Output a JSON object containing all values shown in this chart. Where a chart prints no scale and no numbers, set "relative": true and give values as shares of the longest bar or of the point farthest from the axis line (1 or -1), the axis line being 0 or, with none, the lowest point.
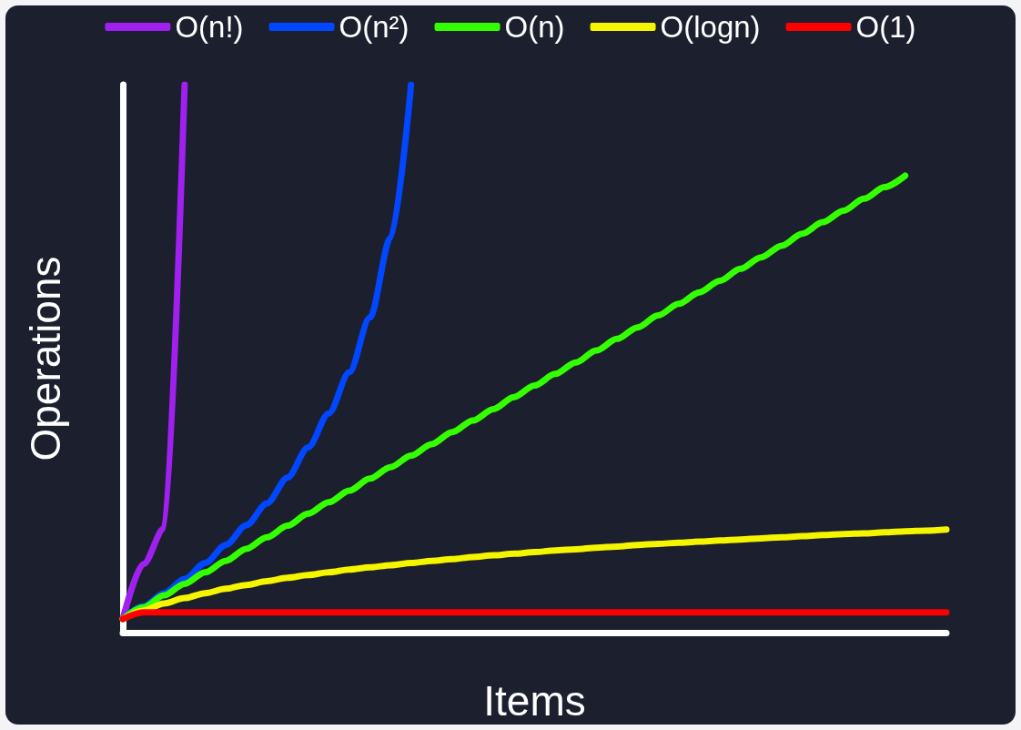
{
  "chart_data": {
    "type": "line",
    "xlabel": "Items",
    "ylabel": "Operations",
    "relative": true,
    "legend": "top",
    "marker": "none",
    "line_style": "solid",
    "categories": [
      null,
      null,
      null,
      null,
      null,
      null,
      null,
      null,
      null,
      null,
      null,
      null,
      null,
      null,
      null,
      null,
      null,
      null,
      null,
      null,
      null,
      null,
      null,
      null,
      null,
      null,
      null,
      null,
      null,
      null,
      null,
      null,
      null,
      null,
      null,
      null,
      null,
      null,
      null,
      null,
      null
    ],
    "series": [
      {
        "name": "O(n!)",
        "color": "#a020f0",
        "values": [
          0.025,
          0.125,
          0.19,
          1.0,
          null,
          null,
          null,
          null,
          null,
          null,
          null,
          null,
          null,
          null,
          null,
          null,
          null,
          null,
          null,
          null,
          null,
          null,
          null,
          null,
          null,
          null,
          null,
          null,
          null,
          null,
          null,
          null,
          null,
          null,
          null,
          null,
          null,
          null,
          null,
          null,
          null
        ]
      },
      {
        "name": "O(n²)",
        "color": "#0047ff",
        "values": [
          0.025,
          0.048,
          0.072,
          0.098,
          0.127,
          0.16,
          0.196,
          0.236,
          0.283,
          0.338,
          0.4,
          0.475,
          0.575,
          0.72,
          1.0,
          null,
          null,
          null,
          null,
          null,
          null,
          null,
          null,
          null,
          null,
          null,
          null,
          null,
          null,
          null,
          null,
          null,
          null,
          null,
          null,
          null,
          null,
          null,
          null,
          null,
          null
        ]
      },
      {
        "name": "O(n)",
        "color": "#33ff00",
        "values": [
          0.025,
          0.046,
          0.068,
          0.089,
          0.11,
          0.131,
          0.153,
          0.174,
          0.195,
          0.217,
          0.238,
          0.259,
          0.281,
          0.302,
          0.323,
          0.344,
          0.366,
          0.387,
          0.408,
          0.43,
          0.451,
          0.472,
          0.493,
          0.515,
          0.536,
          0.557,
          0.579,
          0.6,
          0.621,
          0.642,
          0.664,
          0.685,
          0.706,
          0.728,
          0.749,
          0.77,
          0.792,
          0.813,
          0.834,
          null,
          null
        ]
      },
      {
        "name": "O(logn)",
        "color": "#f5f500",
        "values": [
          0.025,
          0.04,
          0.053,
          0.063,
          0.072,
          0.08,
          0.087,
          0.094,
          0.1,
          0.105,
          0.11,
          0.115,
          0.119,
          0.123,
          0.127,
          0.131,
          0.134,
          0.138,
          0.141,
          0.144,
          0.147,
          0.15,
          0.152,
          0.155,
          0.157,
          0.16,
          0.162,
          0.164,
          0.166,
          0.168,
          0.17,
          0.172,
          0.174,
          0.176,
          0.178,
          0.18,
          0.181,
          0.183,
          0.185,
          0.186,
          0.188
        ]
      },
      {
        "name": "O(1)",
        "color": "#ff0000",
        "values": [
          0.025,
          0.037,
          0.037,
          0.037,
          0.037,
          0.037,
          0.037,
          0.037,
          0.037,
          0.037,
          0.037,
          0.037,
          0.037,
          0.037,
          0.037,
          0.037,
          0.037,
          0.037,
          0.037,
          0.037,
          0.037,
          0.037,
          0.037,
          0.037,
          0.037,
          0.037,
          0.037,
          0.037,
          0.037,
          0.037,
          0.037,
          0.037,
          0.037,
          0.037,
          0.037,
          0.037,
          0.037,
          0.037,
          0.037,
          0.037,
          0.037
        ]
      }
    ]
  }
}
